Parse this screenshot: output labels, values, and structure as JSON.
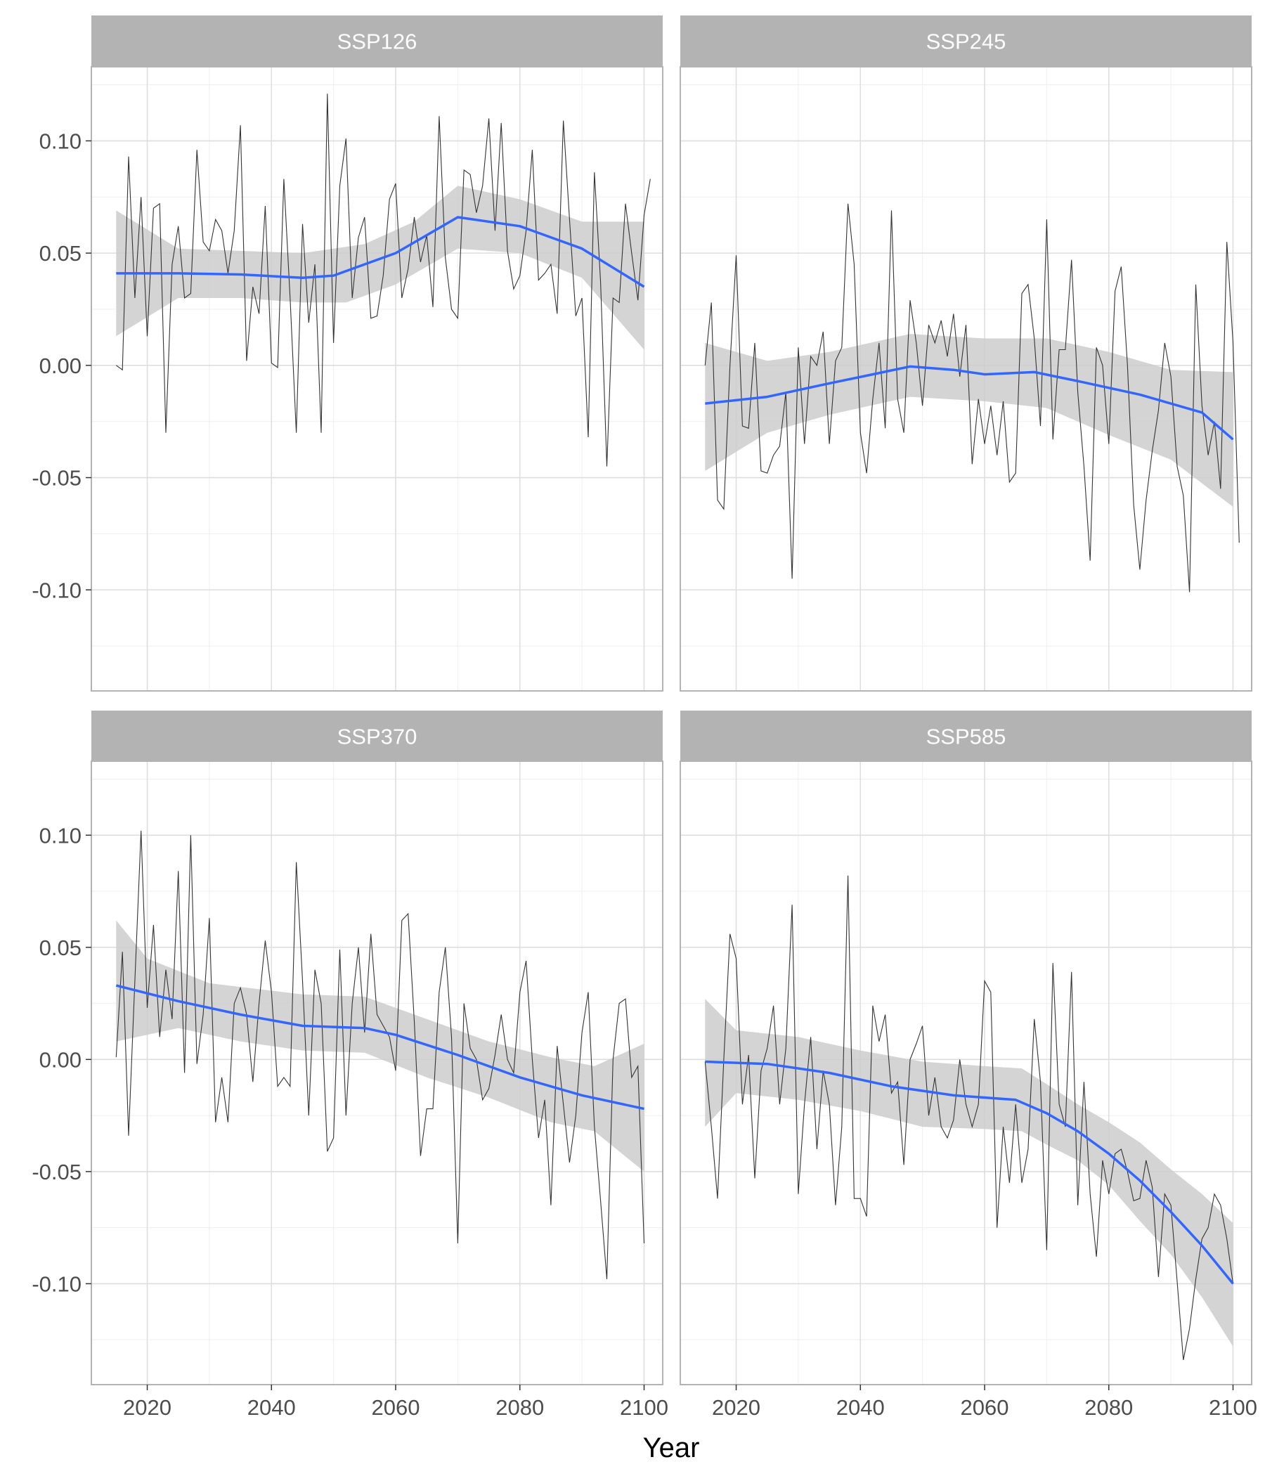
{
  "chart_data": {
    "type": "line",
    "facets": "2x2",
    "xlabel": "Year",
    "ylabel": "",
    "xlim": [
      2011,
      2103
    ],
    "ylim": [
      -0.145,
      0.133
    ],
    "x_ticks": [
      2020,
      2040,
      2060,
      2080,
      2100
    ],
    "x_minor_ticks": [
      2030,
      2050,
      2070,
      2090
    ],
    "y_ticks": [
      -0.1,
      -0.05,
      0.0,
      0.05,
      0.1
    ],
    "y_tick_labels": [
      "-0.10",
      "-0.05",
      "0.00",
      "0.05",
      "0.10"
    ],
    "y_minor_ticks": [
      -0.125,
      -0.075,
      -0.025,
      0.025,
      0.075,
      0.125
    ],
    "grid": true,
    "colors": {
      "raw_line": "#333333",
      "smooth_line": "#3366ff",
      "ribbon": "#cccccc",
      "strip": "#b3b3b3",
      "strip_text": "#ffffff",
      "grid_major": "#dedede",
      "grid_minor": "#efefef",
      "panel_border": "#b3b3b3",
      "tick_label": "#4d4d4d"
    },
    "panels": [
      {
        "strip": "SSP126",
        "raw": [
          0.0,
          -0.002,
          0.093,
          0.03,
          0.075,
          0.013,
          0.07,
          0.072,
          -0.03,
          0.045,
          0.062,
          0.03,
          0.032,
          0.096,
          0.055,
          0.051,
          0.065,
          0.06,
          0.041,
          0.06,
          0.107,
          0.002,
          0.035,
          0.023,
          0.071,
          0.001,
          -0.001,
          0.083,
          0.03,
          -0.03,
          0.063,
          0.019,
          0.045,
          -0.03,
          0.121,
          0.01,
          0.08,
          0.101,
          0.03,
          0.057,
          0.066,
          0.021,
          0.022,
          0.04,
          0.074,
          0.081,
          0.03,
          0.043,
          0.066,
          0.046,
          0.058,
          0.026,
          0.111,
          0.048,
          0.025,
          0.021,
          0.087,
          0.085,
          0.068,
          0.08,
          0.11,
          0.06,
          0.108,
          0.051,
          0.034,
          0.04,
          0.06,
          0.096,
          0.038,
          0.041,
          0.045,
          0.023,
          0.109,
          0.065,
          0.022,
          0.03,
          -0.032,
          0.086,
          0.037,
          -0.045,
          0.03,
          0.028,
          0.072,
          0.05,
          0.029,
          0.067,
          0.083
        ],
        "smooth": [
          [
            2015,
            0.041
          ],
          [
            2025,
            0.041
          ],
          [
            2035,
            0.0405
          ],
          [
            2045,
            0.039
          ],
          [
            2050,
            0.04
          ],
          [
            2060,
            0.05
          ],
          [
            2065,
            0.058
          ],
          [
            2070,
            0.066
          ],
          [
            2080,
            0.062
          ],
          [
            2090,
            0.052
          ],
          [
            2100,
            0.035
          ]
        ],
        "ribbon_upper": [
          [
            2015,
            0.069
          ],
          [
            2025,
            0.052
          ],
          [
            2035,
            0.051
          ],
          [
            2045,
            0.05
          ],
          [
            2055,
            0.054
          ],
          [
            2063,
            0.064
          ],
          [
            2070,
            0.08
          ],
          [
            2080,
            0.074
          ],
          [
            2090,
            0.064
          ],
          [
            2100,
            0.064
          ]
        ],
        "ribbon_lower": [
          [
            2015,
            0.013
          ],
          [
            2025,
            0.03
          ],
          [
            2035,
            0.03
          ],
          [
            2045,
            0.028
          ],
          [
            2052,
            0.028
          ],
          [
            2060,
            0.036
          ],
          [
            2070,
            0.052
          ],
          [
            2080,
            0.05
          ],
          [
            2090,
            0.039
          ],
          [
            2100,
            0.007
          ]
        ]
      },
      {
        "strip": "SSP245",
        "raw": [
          0.0,
          0.028,
          -0.06,
          -0.064,
          0.0,
          0.049,
          -0.027,
          -0.028,
          0.01,
          -0.047,
          -0.048,
          -0.04,
          -0.036,
          -0.012,
          -0.095,
          0.008,
          -0.035,
          0.004,
          0.0,
          0.015,
          -0.035,
          0.002,
          0.008,
          0.072,
          0.045,
          -0.03,
          -0.048,
          -0.015,
          0.01,
          -0.028,
          0.069,
          -0.015,
          -0.03,
          0.029,
          0.01,
          -0.018,
          0.018,
          0.01,
          0.02,
          0.004,
          0.023,
          -0.005,
          0.018,
          -0.044,
          -0.015,
          -0.035,
          -0.018,
          -0.04,
          -0.016,
          -0.052,
          -0.048,
          0.032,
          0.036,
          0.012,
          -0.027,
          0.065,
          -0.033,
          0.007,
          0.007,
          0.047,
          -0.012,
          -0.045,
          -0.087,
          0.008,
          0.0,
          -0.035,
          0.033,
          0.044,
          0.0,
          -0.062,
          -0.091,
          -0.06,
          -0.038,
          -0.02,
          0.01,
          -0.005,
          -0.045,
          -0.058,
          -0.101,
          0.036,
          -0.018,
          -0.04,
          -0.025,
          -0.055,
          0.055,
          0.01,
          -0.079
        ],
        "smooth": [
          [
            2015,
            -0.017
          ],
          [
            2025,
            -0.014
          ],
          [
            2035,
            -0.008
          ],
          [
            2042,
            -0.004
          ],
          [
            2048,
            -0.0005
          ],
          [
            2055,
            -0.002
          ],
          [
            2060,
            -0.004
          ],
          [
            2068,
            -0.003
          ],
          [
            2075,
            -0.007
          ],
          [
            2085,
            -0.013
          ],
          [
            2095,
            -0.021
          ],
          [
            2100,
            -0.033
          ]
        ],
        "ribbon_upper": [
          [
            2015,
            0.01
          ],
          [
            2025,
            0.002
          ],
          [
            2035,
            0.006
          ],
          [
            2048,
            0.014
          ],
          [
            2060,
            0.012
          ],
          [
            2070,
            0.012
          ],
          [
            2080,
            0.006
          ],
          [
            2090,
            -0.002
          ],
          [
            2100,
            -0.003
          ]
        ],
        "ribbon_lower": [
          [
            2015,
            -0.047
          ],
          [
            2025,
            -0.03
          ],
          [
            2035,
            -0.022
          ],
          [
            2048,
            -0.014
          ],
          [
            2060,
            -0.016
          ],
          [
            2070,
            -0.019
          ],
          [
            2080,
            -0.031
          ],
          [
            2090,
            -0.042
          ],
          [
            2100,
            -0.063
          ]
        ]
      },
      {
        "strip": "SSP370",
        "raw": [
          0.001,
          0.048,
          -0.034,
          0.035,
          0.102,
          0.023,
          0.06,
          0.01,
          0.04,
          0.018,
          0.084,
          -0.006,
          0.1,
          -0.002,
          0.02,
          0.063,
          -0.028,
          -0.008,
          -0.028,
          0.025,
          0.032,
          0.02,
          -0.01,
          0.025,
          0.053,
          0.03,
          -0.012,
          -0.008,
          -0.012,
          0.088,
          0.035,
          -0.025,
          0.04,
          0.025,
          -0.041,
          -0.035,
          0.049,
          -0.025,
          0.025,
          0.05,
          0.012,
          0.056,
          0.02,
          0.015,
          0.01,
          -0.005,
          0.062,
          0.065,
          0.017,
          -0.043,
          -0.022,
          -0.022,
          0.03,
          0.05,
          0.01,
          -0.082,
          0.025,
          0.005,
          0.0,
          -0.018,
          -0.013,
          0.002,
          0.02,
          0.0,
          -0.006,
          0.03,
          0.044,
          0.0,
          -0.035,
          -0.018,
          -0.065,
          0.006,
          -0.02,
          -0.046,
          -0.025,
          0.012,
          0.03,
          -0.03,
          -0.063,
          -0.098,
          0.0,
          0.025,
          0.027,
          -0.008,
          -0.003,
          -0.082
        ],
        "smooth": [
          [
            2015,
            0.033
          ],
          [
            2025,
            0.026
          ],
          [
            2035,
            0.02
          ],
          [
            2045,
            0.015
          ],
          [
            2055,
            0.014
          ],
          [
            2060,
            0.011
          ],
          [
            2070,
            0.002
          ],
          [
            2080,
            -0.008
          ],
          [
            2090,
            -0.016
          ],
          [
            2100,
            -0.022
          ]
        ],
        "ribbon_upper": [
          [
            2015,
            0.062
          ],
          [
            2020,
            0.045
          ],
          [
            2030,
            0.034
          ],
          [
            2045,
            0.029
          ],
          [
            2055,
            0.028
          ],
          [
            2065,
            0.018
          ],
          [
            2075,
            0.008
          ],
          [
            2085,
            0.001
          ],
          [
            2092,
            -0.003
          ],
          [
            2100,
            0.007
          ]
        ],
        "ribbon_lower": [
          [
            2015,
            0.008
          ],
          [
            2025,
            0.014
          ],
          [
            2035,
            0.008
          ],
          [
            2045,
            0.004
          ],
          [
            2055,
            0.003
          ],
          [
            2065,
            -0.008
          ],
          [
            2075,
            -0.017
          ],
          [
            2085,
            -0.028
          ],
          [
            2092,
            -0.032
          ],
          [
            2100,
            -0.05
          ]
        ]
      },
      {
        "strip": "SSP585",
        "raw": [
          -0.001,
          -0.03,
          -0.062,
          0.0,
          0.056,
          0.045,
          -0.02,
          0.002,
          -0.053,
          -0.005,
          0.005,
          0.024,
          -0.02,
          0.005,
          0.069,
          -0.06,
          -0.02,
          0.01,
          -0.04,
          -0.005,
          -0.02,
          -0.065,
          -0.03,
          0.082,
          -0.062,
          -0.062,
          -0.07,
          0.024,
          0.008,
          0.02,
          -0.015,
          -0.01,
          -0.047,
          0.0,
          0.007,
          0.015,
          -0.025,
          -0.008,
          -0.03,
          -0.035,
          -0.027,
          0.0,
          -0.02,
          -0.03,
          -0.02,
          0.035,
          0.03,
          -0.075,
          -0.03,
          -0.055,
          -0.02,
          -0.055,
          -0.04,
          0.018,
          -0.01,
          -0.085,
          0.043,
          -0.02,
          -0.03,
          0.039,
          -0.065,
          -0.01,
          -0.06,
          -0.088,
          -0.045,
          -0.06,
          -0.042,
          -0.04,
          -0.05,
          -0.063,
          -0.062,
          -0.045,
          -0.057,
          -0.097,
          -0.06,
          -0.065,
          -0.099,
          -0.134,
          -0.12,
          -0.098,
          -0.08,
          -0.075,
          -0.06,
          -0.065,
          -0.08,
          -0.1
        ],
        "smooth": [
          [
            2015,
            -0.001
          ],
          [
            2025,
            -0.002
          ],
          [
            2035,
            -0.006
          ],
          [
            2045,
            -0.012
          ],
          [
            2055,
            -0.016
          ],
          [
            2065,
            -0.018
          ],
          [
            2070,
            -0.024
          ],
          [
            2075,
            -0.032
          ],
          [
            2080,
            -0.042
          ],
          [
            2085,
            -0.054
          ],
          [
            2090,
            -0.068
          ],
          [
            2095,
            -0.083
          ],
          [
            2100,
            -0.1
          ]
        ],
        "ribbon_upper": [
          [
            2015,
            0.027
          ],
          [
            2020,
            0.013
          ],
          [
            2030,
            0.01
          ],
          [
            2040,
            0.004
          ],
          [
            2050,
            -0.001
          ],
          [
            2060,
            -0.003
          ],
          [
            2066,
            -0.004
          ],
          [
            2070,
            -0.011
          ],
          [
            2075,
            -0.02
          ],
          [
            2080,
            -0.028
          ],
          [
            2085,
            -0.037
          ],
          [
            2090,
            -0.049
          ],
          [
            2095,
            -0.06
          ],
          [
            2100,
            -0.073
          ]
        ],
        "ribbon_lower": [
          [
            2015,
            -0.03
          ],
          [
            2020,
            -0.015
          ],
          [
            2030,
            -0.018
          ],
          [
            2040,
            -0.023
          ],
          [
            2050,
            -0.03
          ],
          [
            2060,
            -0.031
          ],
          [
            2066,
            -0.032
          ],
          [
            2070,
            -0.038
          ],
          [
            2075,
            -0.045
          ],
          [
            2080,
            -0.056
          ],
          [
            2085,
            -0.072
          ],
          [
            2090,
            -0.087
          ],
          [
            2095,
            -0.106
          ],
          [
            2100,
            -0.128
          ]
        ]
      }
    ]
  }
}
